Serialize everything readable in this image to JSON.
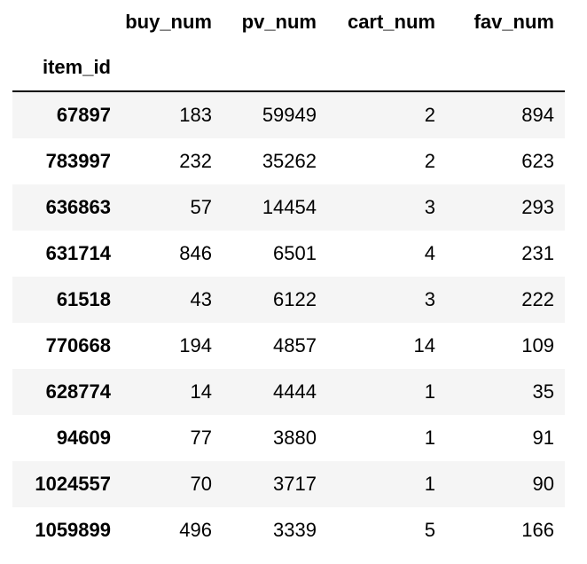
{
  "columns": [
    "buy_num",
    "pv_num",
    "cart_num",
    "fav_num"
  ],
  "index_name": "item_id",
  "rows": [
    {
      "item_id": "67897",
      "buy_num": "183",
      "pv_num": "59949",
      "cart_num": "2",
      "fav_num": "894"
    },
    {
      "item_id": "783997",
      "buy_num": "232",
      "pv_num": "35262",
      "cart_num": "2",
      "fav_num": "623"
    },
    {
      "item_id": "636863",
      "buy_num": "57",
      "pv_num": "14454",
      "cart_num": "3",
      "fav_num": "293"
    },
    {
      "item_id": "631714",
      "buy_num": "846",
      "pv_num": "6501",
      "cart_num": "4",
      "fav_num": "231"
    },
    {
      "item_id": "61518",
      "buy_num": "43",
      "pv_num": "6122",
      "cart_num": "3",
      "fav_num": "222"
    },
    {
      "item_id": "770668",
      "buy_num": "194",
      "pv_num": "4857",
      "cart_num": "14",
      "fav_num": "109"
    },
    {
      "item_id": "628774",
      "buy_num": "14",
      "pv_num": "4444",
      "cart_num": "1",
      "fav_num": "35"
    },
    {
      "item_id": "94609",
      "buy_num": "77",
      "pv_num": "3880",
      "cart_num": "1",
      "fav_num": "91"
    },
    {
      "item_id": "1024557",
      "buy_num": "70",
      "pv_num": "3717",
      "cart_num": "1",
      "fav_num": "90"
    },
    {
      "item_id": "1059899",
      "buy_num": "496",
      "pv_num": "3339",
      "cart_num": "5",
      "fav_num": "166"
    }
  ],
  "colors": {
    "striped_row": "#f5f5f5",
    "header_rule": "#000000"
  }
}
